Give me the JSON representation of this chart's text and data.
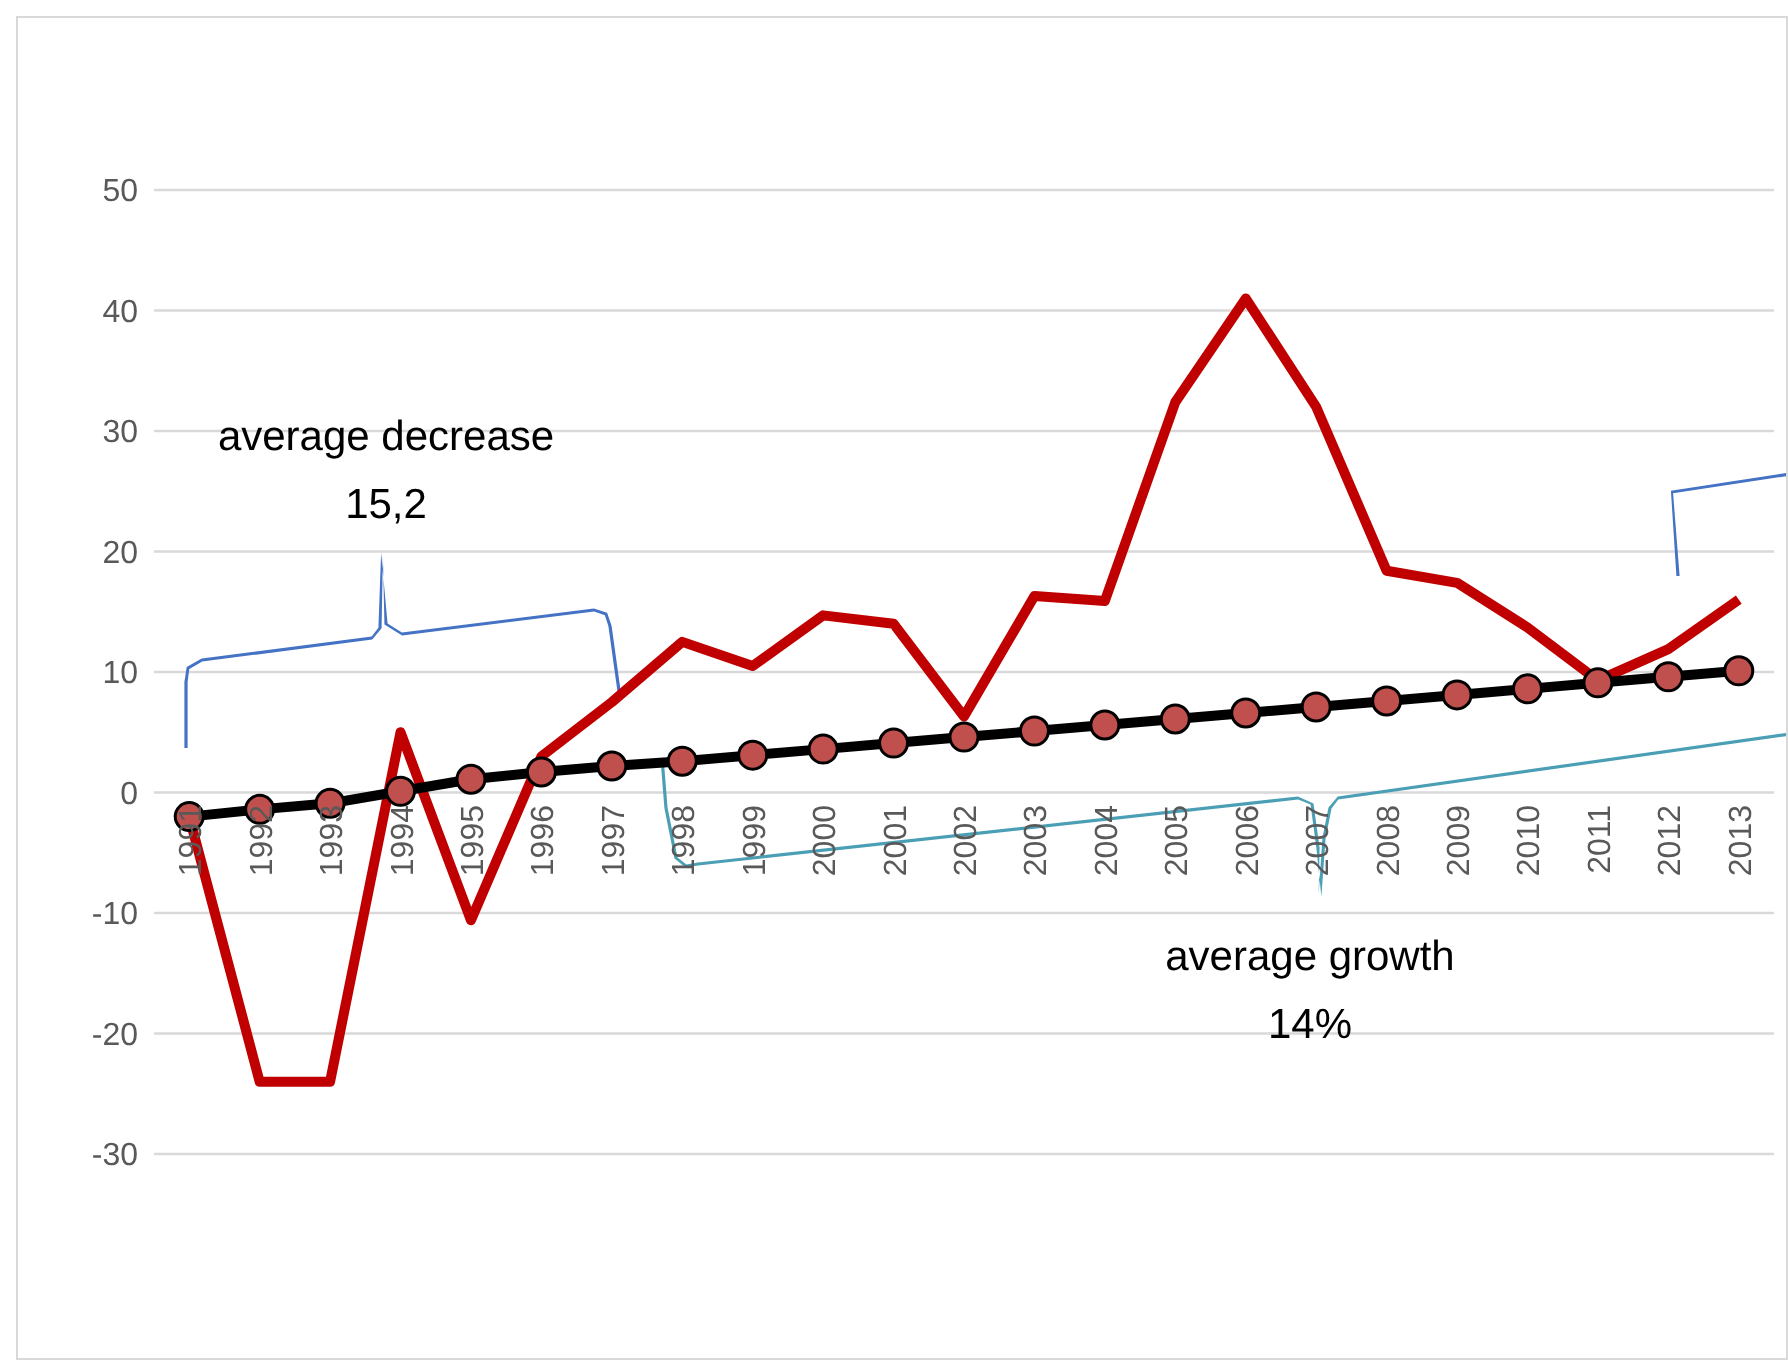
{
  "chart_data": {
    "type": "line",
    "categories": [
      "1991",
      "1992",
      "1993",
      "1994",
      "1995",
      "1996",
      "1997",
      "1998",
      "1999",
      "2000",
      "2001",
      "2002",
      "2003",
      "2004",
      "2005",
      "2006",
      "2007",
      "2008",
      "2009",
      "2010",
      "2011",
      "2012",
      "2013"
    ],
    "series": [
      {
        "color": "#c00000",
        "marker": "none",
        "values": [
          -2,
          -24,
          -24,
          5,
          -10.6,
          3,
          7.5,
          12.5,
          10.5,
          14.7,
          14,
          6.3,
          16.3,
          15.9,
          32.4,
          41,
          32,
          18.4,
          17.4,
          13.7,
          9.3,
          11.9,
          16
        ]
      },
      {
        "color": "#000000",
        "marker": "circle",
        "values": [
          -2,
          -1.4,
          -0.9,
          0.1,
          1.1,
          1.7,
          2.2,
          2.6,
          3.1,
          3.6,
          4.1,
          4.6,
          5.1,
          5.6,
          6.1,
          6.6,
          7.1,
          7.6,
          8.1,
          8.6,
          9.1,
          9.6,
          10.1
        ]
      }
    ],
    "ylim": [
      -30,
      50
    ],
    "yticks": [
      -30,
      -20,
      -10,
      0,
      10,
      20,
      30,
      40,
      50
    ],
    "grid": "y",
    "annotations": [
      "average decrease\n15,2",
      "average growth\n14%"
    ]
  }
}
